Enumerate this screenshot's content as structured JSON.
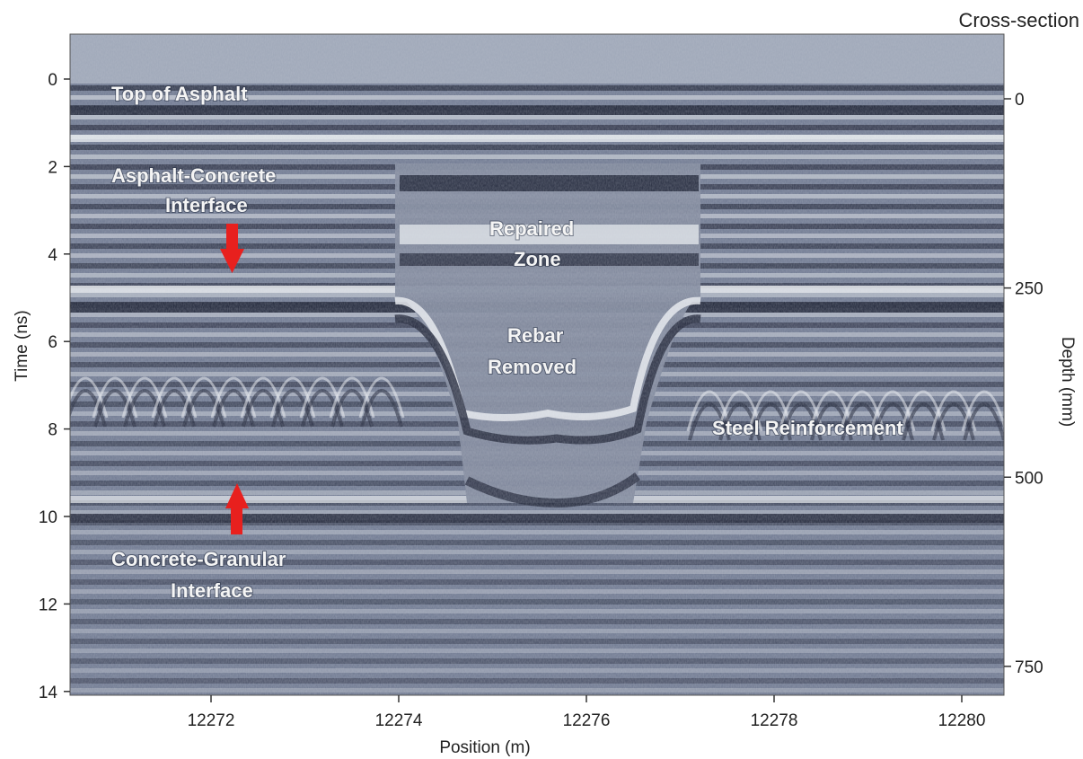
{
  "title": "Cross-section",
  "x_axis": {
    "label": "Position (m)",
    "ticks": [
      "12272",
      "12274",
      "12276",
      "12278",
      "12280"
    ]
  },
  "y_left": {
    "label": "Time (ns)",
    "ticks": [
      "0",
      "2",
      "4",
      "6",
      "8",
      "10",
      "12",
      "14"
    ]
  },
  "y_right": {
    "label": "Depth (mm)",
    "ticks": [
      "0",
      "250",
      "500",
      "750"
    ]
  },
  "annotations": {
    "top_of_asphalt": "Top of Asphalt",
    "asphalt_concrete_1": "Asphalt-Concrete",
    "asphalt_concrete_2": "Interface",
    "repaired_1": "Repaired",
    "repaired_2": "Zone",
    "rebar_1": "Rebar",
    "rebar_2": "Removed",
    "steel": "Steel Reinforcement",
    "concrete_granular_1": "Concrete-Granular",
    "concrete_granular_2": "Interface"
  },
  "colors": {
    "arrow": "#e8201e",
    "radargram_dark": "#1b2033",
    "radargram_mid": "#8a93a8",
    "radargram_light": "#eef1f4"
  }
}
